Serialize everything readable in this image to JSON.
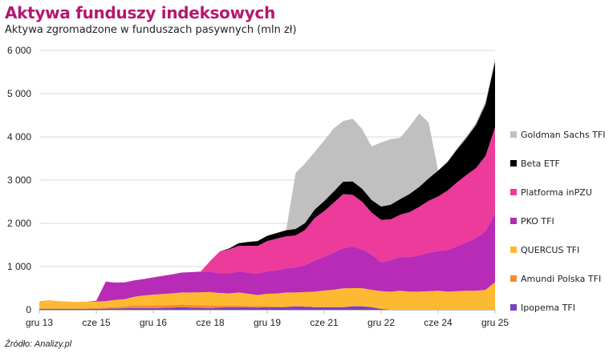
{
  "header": {
    "title": "Aktywa funduszy indeksowych",
    "subtitle": "Aktywa zgromadzone w funduszach pasywnych (mln zł)"
  },
  "footer": {
    "source": "Źródło: Analizy.pl"
  },
  "chart_data": {
    "type": "area",
    "stacked": true,
    "title": "Aktywa funduszy indeksowych",
    "subtitle": "Aktywa zgromadzone w funduszach pasywnych (mln zł)",
    "xlabel": "",
    "ylabel": "mln zł",
    "ylim": [
      0,
      6000
    ],
    "yticks": [
      0,
      1000,
      2000,
      3000,
      4000,
      5000,
      6000
    ],
    "ytick_labels": [
      "0",
      "1 000",
      "2 000",
      "3 000",
      "4 000",
      "5 000",
      "6 000"
    ],
    "xtick_labels": [
      "gru 13",
      "cze 15",
      "gru 16",
      "cze 18",
      "gru 19",
      "cze 21",
      "gru 22",
      "cze 24",
      "gru 25"
    ],
    "x_start": "2013-12",
    "x_step_months": 3,
    "grid": "horizontal",
    "legend_position": "right",
    "series": [
      {
        "name": "Ipopema TFI",
        "color": "#7b3fc4",
        "values": [
          20,
          20,
          20,
          20,
          20,
          20,
          20,
          25,
          30,
          35,
          40,
          40,
          40,
          45,
          50,
          60,
          50,
          45,
          40,
          50,
          60,
          60,
          60,
          50,
          60,
          55,
          60,
          80,
          70,
          60,
          60,
          60,
          60,
          80,
          80,
          60,
          20,
          0,
          0,
          0,
          0,
          0,
          0,
          0,
          0,
          0,
          0,
          0,
          0
        ]
      },
      {
        "name": "Amundi Polska TFI",
        "color": "#f58a2e",
        "values": [
          10,
          10,
          10,
          10,
          10,
          15,
          20,
          25,
          30,
          40,
          60,
          60,
          60,
          60,
          60,
          60,
          60,
          60,
          60,
          50,
          40,
          40,
          30,
          30,
          30,
          20,
          20,
          10,
          10,
          10,
          5,
          5,
          5,
          0,
          0,
          0,
          0,
          0,
          0,
          0,
          0,
          0,
          0,
          0,
          0,
          0,
          0,
          0,
          0
        ]
      },
      {
        "name": "QUERCUS TFI",
        "color": "#fdb932",
        "values": [
          170,
          190,
          170,
          160,
          150,
          150,
          150,
          150,
          170,
          170,
          200,
          230,
          250,
          260,
          270,
          280,
          290,
          300,
          310,
          290,
          280,
          300,
          280,
          260,
          280,
          300,
          320,
          310,
          330,
          350,
          380,
          400,
          430,
          420,
          420,
          400,
          410,
          420,
          440,
          420,
          420,
          430,
          440,
          420,
          430,
          440,
          440,
          460,
          640
        ]
      },
      {
        "name": "PKO TFI",
        "color": "#b72bb7",
        "values": [
          0,
          0,
          0,
          0,
          0,
          0,
          20,
          450,
          400,
          390,
          380,
          380,
          400,
          420,
          440,
          460,
          470,
          480,
          470,
          460,
          470,
          480,
          490,
          500,
          520,
          540,
          560,
          580,
          620,
          720,
          780,
          860,
          930,
          960,
          900,
          820,
          660,
          730,
          780,
          800,
          840,
          890,
          920,
          960,
          1040,
          1120,
          1220,
          1360,
          1600
        ]
      },
      {
        "name": "Platforma inPZU",
        "color": "#ec3b9a",
        "values": [
          0,
          0,
          0,
          0,
          0,
          0,
          0,
          0,
          0,
          0,
          0,
          0,
          0,
          0,
          0,
          0,
          0,
          0,
          250,
          500,
          550,
          600,
          620,
          640,
          700,
          730,
          740,
          740,
          820,
          980,
          1060,
          1150,
          1250,
          1200,
          1100,
          970,
          990,
          940,
          980,
          1040,
          1120,
          1200,
          1260,
          1380,
          1480,
          1560,
          1620,
          1740,
          1980
        ]
      },
      {
        "name": "Beta ETF",
        "color": "#000000",
        "values": [
          0,
          0,
          0,
          0,
          0,
          0,
          0,
          0,
          0,
          0,
          0,
          0,
          0,
          0,
          0,
          0,
          0,
          0,
          0,
          0,
          20,
          60,
          90,
          110,
          120,
          130,
          140,
          150,
          160,
          200,
          230,
          260,
          290,
          310,
          300,
          290,
          310,
          340,
          360,
          420,
          460,
          520,
          600,
          660,
          760,
          860,
          1000,
          1200,
          1520
        ]
      },
      {
        "name": "Goldman Sachs TFI",
        "color": "#c0c0c0",
        "values": [
          0,
          0,
          0,
          0,
          0,
          0,
          0,
          0,
          0,
          0,
          0,
          0,
          0,
          0,
          0,
          0,
          0,
          0,
          0,
          0,
          0,
          0,
          0,
          0,
          0,
          0,
          0,
          1300,
          1380,
          1330,
          1400,
          1460,
          1400,
          1450,
          1380,
          1240,
          1480,
          1520,
          1420,
          1560,
          1700,
          1300,
          0,
          20,
          30,
          40,
          50,
          60,
          80
        ]
      }
    ]
  }
}
